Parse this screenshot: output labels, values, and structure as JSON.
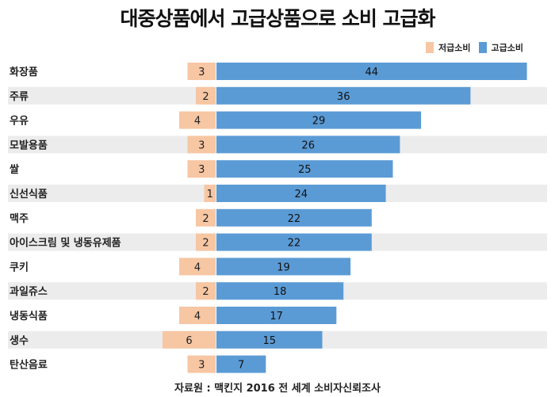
{
  "chart_data": {
    "type": "bar",
    "title": "대중상품에서 고급상품으로 소비 고급화",
    "categories": [
      "화장품",
      "주류",
      "우유",
      "모발용품",
      "쌀",
      "신선식품",
      "맥주",
      "아이스크림 및 냉동유제품",
      "쿠키",
      "과일쥬스",
      "냉동식품",
      "생수",
      "탄산음료"
    ],
    "series": [
      {
        "name": "저급소비",
        "color": "#f7c6a3",
        "values": [
          3,
          2,
          4,
          3,
          3,
          1,
          2,
          2,
          4,
          2,
          4,
          6,
          3
        ]
      },
      {
        "name": "고급소비",
        "color": "#5b9bd5",
        "values": [
          44,
          36,
          29,
          26,
          25,
          24,
          22,
          22,
          19,
          18,
          17,
          15,
          7
        ]
      }
    ],
    "legend_position": "top-right",
    "source": "자료원 : 맥킨지 2016 전 세계 소비자신뢰조사"
  }
}
